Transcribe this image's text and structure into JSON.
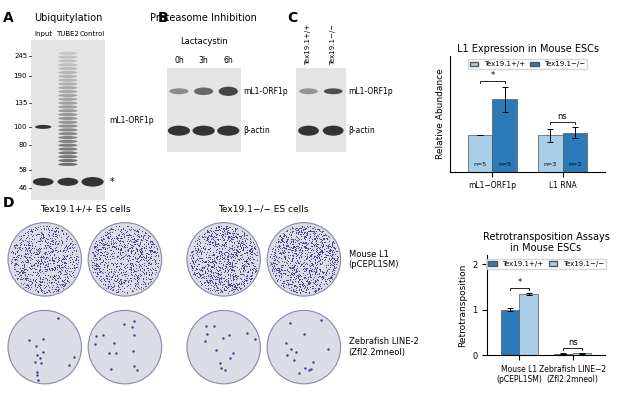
{
  "panels": {
    "A": {
      "letter": "A",
      "title": "Ubiquitylation",
      "lanes": [
        "Input",
        "TUBE2",
        "Control"
      ],
      "markers": [
        245,
        190,
        135,
        100,
        80,
        58,
        46
      ],
      "band_label": "mL1-ORF1p",
      "nonspecific": "*"
    },
    "B": {
      "letter": "B",
      "title": "Proteasome Inhibition",
      "treatment": "Lactacystin",
      "lanes": [
        "0h",
        "3h",
        "6h"
      ],
      "rows": [
        "mL1-ORF1p",
        "β-actin"
      ]
    },
    "C": {
      "letter": "C",
      "lanes": [
        "Tex19.1+/+",
        "Tex19.1−/−"
      ],
      "rows": [
        "mL1-ORF1p",
        "β-actin"
      ]
    },
    "D": {
      "letter": "D",
      "columns": [
        "Tex19.1+/+ ES cells",
        "Tex19.1−/− ES cells"
      ],
      "rows": [
        "Mouse L1\n(pCEPL1SM)",
        "Zebrafish LINE-2\n(Zfl2.2mneol)"
      ]
    }
  },
  "chart_data": [
    {
      "type": "bar",
      "title": "L1 Expression in Mouse ESCs",
      "ylabel": "Relative Abundance",
      "categories": [
        "mL1−ORF1p",
        "L1 RNA"
      ],
      "series": [
        {
          "name": "Tex19.1+/+",
          "color": "#a9cfe8",
          "values": [
            1,
            1
          ],
          "errors": [
            0,
            0.18
          ],
          "n_labels": [
            "n=5",
            "n=3"
          ]
        },
        {
          "name": "Tex19.1−/−",
          "color": "#2b7bba",
          "values": [
            2.0,
            1.07
          ],
          "errors": [
            0.35,
            0.15
          ],
          "n_labels": [
            "n=5",
            "n=3"
          ]
        }
      ],
      "significance": [
        "*",
        "ns"
      ],
      "ylim": [
        0,
        3.2
      ],
      "legend": "upper center",
      "tick_labels": "x"
    },
    {
      "type": "bar",
      "title": "Retrotransposition Assays\nin Mouse ESCs",
      "ylabel": "Retrotransposition",
      "categories": [
        "Mouse L1\n(pCEPL1SM)",
        "Zebrafish LINE−2\n(Zfl2.2mneol)"
      ],
      "series": [
        {
          "name": "Tex19.1+/+",
          "color": "#2b7bba",
          "values": [
            1.0,
            0.03
          ],
          "errors": [
            0.03,
            0.01
          ]
        },
        {
          "name": "Tex19.1−/−",
          "color": "#a9cfe8",
          "values": [
            1.35,
            0.04
          ],
          "errors": [
            0.03,
            0.01
          ]
        }
      ],
      "significance": [
        "*",
        "ns"
      ],
      "ylim": [
        0,
        2.2
      ],
      "yticks": [
        0,
        1,
        2
      ],
      "legend": "upper center"
    }
  ]
}
